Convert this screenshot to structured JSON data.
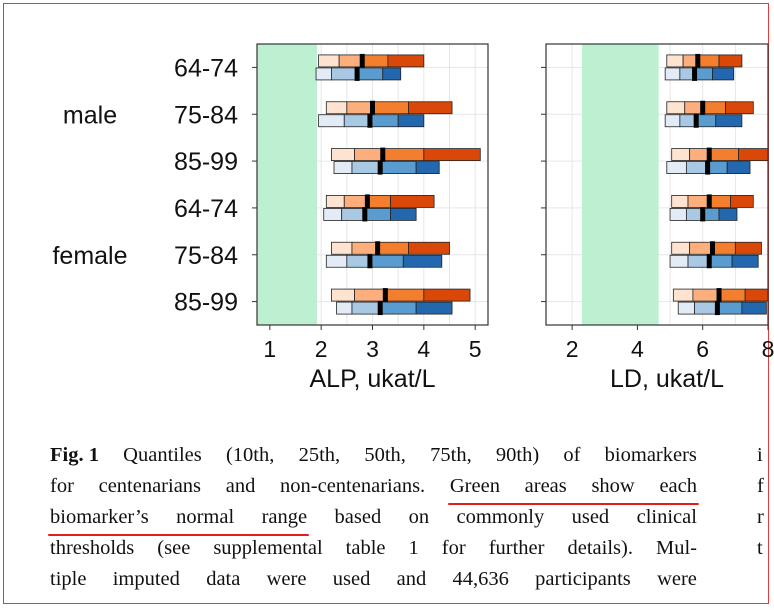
{
  "figure": {
    "group_labels": [
      "male",
      "female"
    ],
    "row_labels": [
      "64-74",
      "75-84",
      "85-99",
      "64-74",
      "75-84",
      "85-99"
    ],
    "colors": {
      "normal_range": "#bdf0d0",
      "orange_shades": [
        "#fde3d0",
        "#fcaf7c",
        "#f27e2e",
        "#d94808"
      ],
      "blue_shades": [
        "#e3ecf6",
        "#a9c8e3",
        "#5a9bd0",
        "#2368ae"
      ],
      "median": "#000000",
      "grid": "#e6e6e6",
      "frame": "#333333"
    }
  },
  "chart_data": [
    {
      "type": "box",
      "xlabel": "ALP, ukat/L",
      "xlim": [
        0.75,
        5.25
      ],
      "ticks": [
        1,
        2,
        3,
        4,
        5
      ],
      "normal_range": [
        0.75,
        1.92
      ],
      "series_order": [
        "orange",
        "blue"
      ],
      "rows": [
        {
          "label": "64-74",
          "group": "male",
          "orange": [
            1.95,
            2.35,
            2.8,
            3.3,
            4.0
          ],
          "blue": [
            1.9,
            2.2,
            2.7,
            3.2,
            3.55
          ]
        },
        {
          "label": "75-84",
          "group": "male",
          "orange": [
            2.1,
            2.5,
            3.0,
            3.7,
            4.55
          ],
          "blue": [
            1.95,
            2.45,
            2.95,
            3.5,
            4.0
          ]
        },
        {
          "label": "85-99",
          "group": "male",
          "orange": [
            2.2,
            2.65,
            3.2,
            4.0,
            5.1
          ],
          "blue": [
            2.25,
            2.6,
            3.15,
            3.85,
            4.3
          ]
        },
        {
          "label": "64-74",
          "group": "female",
          "orange": [
            2.1,
            2.45,
            2.9,
            3.35,
            4.2
          ],
          "blue": [
            2.05,
            2.4,
            2.85,
            3.35,
            3.85
          ]
        },
        {
          "label": "75-84",
          "group": "female",
          "orange": [
            2.2,
            2.6,
            3.1,
            3.7,
            4.5
          ],
          "blue": [
            2.1,
            2.5,
            2.95,
            3.6,
            4.35
          ]
        },
        {
          "label": "85-99",
          "group": "female",
          "orange": [
            2.2,
            2.65,
            3.25,
            4.0,
            4.9
          ],
          "blue": [
            2.3,
            2.6,
            3.15,
            3.85,
            4.55
          ]
        }
      ]
    },
    {
      "type": "box",
      "xlabel": "LD, ukat/L",
      "xlim": [
        1.2,
        8.0
      ],
      "ticks": [
        2,
        4,
        6,
        8
      ],
      "normal_range": [
        2.3,
        4.65
      ],
      "series_order": [
        "orange",
        "blue"
      ],
      "rows": [
        {
          "label": "64-74",
          "group": "male",
          "orange": [
            4.9,
            5.4,
            5.85,
            6.5,
            7.2
          ],
          "blue": [
            4.85,
            5.3,
            5.75,
            6.3,
            6.95
          ]
        },
        {
          "label": "75-84",
          "group": "male",
          "orange": [
            4.9,
            5.45,
            6.0,
            6.7,
            7.55
          ],
          "blue": [
            4.85,
            5.3,
            5.8,
            6.4,
            7.2
          ]
        },
        {
          "label": "85-99",
          "group": "male",
          "orange": [
            5.05,
            5.6,
            6.2,
            7.1,
            8.0
          ],
          "blue": [
            4.9,
            5.5,
            6.15,
            6.75,
            7.45
          ]
        },
        {
          "label": "64-74",
          "group": "female",
          "orange": [
            5.05,
            5.55,
            6.2,
            6.85,
            7.55
          ],
          "blue": [
            5.0,
            5.5,
            6.0,
            6.5,
            7.05
          ]
        },
        {
          "label": "75-84",
          "group": "female",
          "orange": [
            5.05,
            5.6,
            6.3,
            7.0,
            7.8
          ],
          "blue": [
            5.0,
            5.55,
            6.2,
            6.9,
            7.7
          ]
        },
        {
          "label": "85-99",
          "group": "female",
          "orange": [
            5.1,
            5.7,
            6.5,
            7.3,
            8.0
          ],
          "blue": [
            5.25,
            5.75,
            6.45,
            7.2,
            7.95
          ]
        }
      ]
    }
  ],
  "caption": {
    "lines": [
      [
        "Fig. 1",
        "Quantiles",
        "(10th,",
        "25th,",
        "50th,",
        "75th,",
        "90th)",
        "of",
        "biomarkers"
      ],
      [
        "for",
        "centenarians",
        "and",
        "non-centenarians.",
        "Green",
        "areas",
        "show",
        "each"
      ],
      [
        "biomarker’s",
        "normal",
        "range",
        "based",
        "on",
        "commonly",
        "used",
        "clinical"
      ],
      [
        "thresholds",
        "(see",
        "supplemental",
        "table",
        "1",
        "for",
        "further",
        "details).",
        "Mul-"
      ],
      [
        "tiple",
        "imputed",
        "data",
        "were",
        "used",
        "and",
        "44,636",
        "participants",
        "were"
      ]
    ],
    "highlighted_phrase": "Green areas show each biomarker’s normal range"
  },
  "right_column_fragment": [
    "i",
    "f",
    "r",
    "t",
    ""
  ]
}
